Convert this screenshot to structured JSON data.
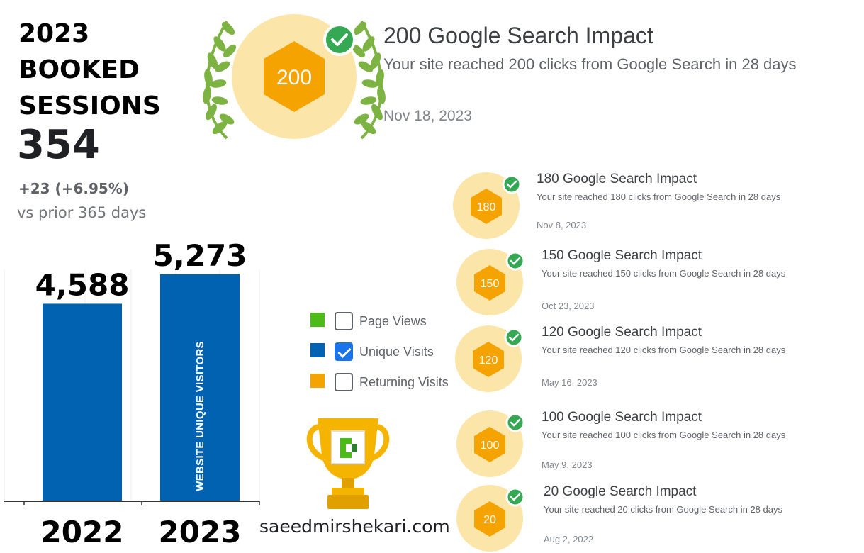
{
  "booked": {
    "title_line1": "2023",
    "title_line2": "BOOKED",
    "title_line3": "SESSIONS",
    "value": "354",
    "delta": "+23 (+6.95%)",
    "compare": "vs prior 365 days"
  },
  "chart_data": {
    "type": "bar",
    "categories": [
      "2022",
      "2023"
    ],
    "values": [
      4588,
      5273
    ],
    "value_labels": [
      "4,588",
      "5,273"
    ],
    "bar_inner_label": "WEBSITE UNIQUE VISITORS",
    "title": "",
    "xlabel": "",
    "ylabel": "",
    "ylim": [
      0,
      5600
    ],
    "bar_color": "#0062b1",
    "grid": false
  },
  "highlight": {
    "badge_value": "200",
    "title": "200 Google Search Impact",
    "description": "Your site reached 200 clicks from Google Search in 28 days",
    "date": "Nov 18, 2023"
  },
  "legend": [
    {
      "label": "Page Views",
      "color": "#4cbb17",
      "checked": false
    },
    {
      "label": "Unique Visits",
      "color": "#0062b1",
      "checked": true
    },
    {
      "label": "Returning Visits",
      "color": "#f5a300",
      "checked": false
    }
  ],
  "site": {
    "url": "saeedmirshekari.com"
  },
  "milestones": [
    {
      "badge": "180",
      "title": "180 Google Search Impact",
      "description": "Your site reached 180 clicks from Google Search in 28 days",
      "date": "Nov 8, 2023"
    },
    {
      "badge": "150",
      "title": "150 Google Search Impact",
      "description": "Your site reached 150 clicks from Google Search in 28 days",
      "date": "Oct 23, 2023"
    },
    {
      "badge": "120",
      "title": "120 Google Search Impact",
      "description": "Your site reached 120 clicks from Google Search in 28 days",
      "date": "May 16, 2023"
    },
    {
      "badge": "100",
      "title": "100 Google Search Impact",
      "description": "Your site reached 100 clicks from Google Search in 28 days",
      "date": "May 9, 2023"
    },
    {
      "badge": "20",
      "title": "20 Google Search Impact",
      "description": "Your site reached 20 clicks from Google Search in 28 days",
      "date": "Aug 2, 2022"
    }
  ],
  "colors": {
    "badge_hex": "#f5a300",
    "badge_halo": "#fbe5a8",
    "check_green": "#34a853",
    "laurel_green": "#7cb342"
  }
}
